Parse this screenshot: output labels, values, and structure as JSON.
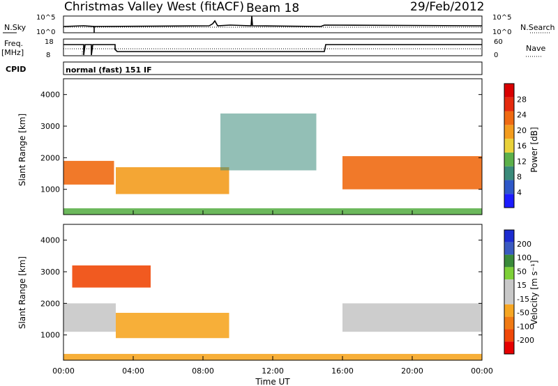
{
  "header": {
    "station": "Christmas Valley West (fitACF)",
    "beam": "Beam 18",
    "date": "29/Feb/2012"
  },
  "status_panels": {
    "nsky_label": "N.Sky",
    "nsearch_label": "N.Search",
    "nsky_ticks": [
      "10^5",
      "10^0"
    ],
    "nsearch_ticks": [
      "10^5",
      "10^0"
    ],
    "freq_label": "Freq.",
    "freq_unit": "[MHz]",
    "freq_ticks": [
      "18",
      "8"
    ],
    "nave_label": "Nave",
    "nave_ticks": [
      "60",
      "0"
    ],
    "cpid_label": "CPID",
    "cpid_text": "normal (fast) 151 IF"
  },
  "colors": {
    "power_scale": [
      "#1c1cff",
      "#2e58c8",
      "#3a8a7a",
      "#5cb04a",
      "#e9d13a",
      "#f39c1e",
      "#ef6a12",
      "#e52a0e",
      "#d90000"
    ],
    "velocity_scale": [
      "#1c2cd0",
      "#3a5ac0",
      "#3a8a3a",
      "#7ed038",
      "#c8c8c8",
      "#c8c8c8",
      "#f6a623",
      "#f07a14",
      "#f04808",
      "#e60000"
    ]
  },
  "chart_data": [
    {
      "type": "heatmap",
      "panel": "power",
      "ylabel": "Slant Range [km]",
      "ylim": [
        200,
        4500
      ],
      "yticks": [
        "1000",
        "2000",
        "3000",
        "4000"
      ],
      "xlim": [
        "00:00",
        "24:00"
      ],
      "colorbar_label": "Power [dB]",
      "colorbar_ticks": [
        "4",
        "8",
        "12",
        "16",
        "20",
        "24",
        "28"
      ],
      "regions": [
        {
          "name": "main-echo-morning",
          "x_start_h": 0.0,
          "x_end_h": 2.9,
          "y_low_km": 1150,
          "y_high_km": 1900,
          "power_db": 24
        },
        {
          "name": "main-echo-day",
          "x_start_h": 3.0,
          "x_end_h": 9.5,
          "y_low_km": 850,
          "y_high_km": 1700,
          "power_db": 20
        },
        {
          "name": "dusk-echo",
          "x_start_h": 16.0,
          "x_end_h": 24.0,
          "y_low_km": 1000,
          "y_high_km": 2050,
          "power_db": 24
        },
        {
          "name": "noon-weak-echo",
          "x_start_h": 9.0,
          "x_end_h": 14.5,
          "y_low_km": 1600,
          "y_high_km": 3400,
          "power_db": 6
        },
        {
          "name": "ground-scatter-floor",
          "x_start_h": 0.0,
          "x_end_h": 24.0,
          "y_low_km": 200,
          "y_high_km": 400,
          "power_db": 10
        }
      ]
    },
    {
      "type": "heatmap",
      "panel": "velocity",
      "ylabel": "Slant Range [km]",
      "ylim": [
        200,
        4500
      ],
      "yticks": [
        "1000",
        "2000",
        "3000",
        "4000"
      ],
      "xlim": [
        "00:00",
        "24:00"
      ],
      "xticks": [
        "00:00",
        "04:00",
        "08:00",
        "12:00",
        "16:00",
        "20:00",
        "00:00"
      ],
      "xlabel": "Time UT",
      "colorbar_label": "Velocity [m s⁻¹]",
      "colorbar_ticks": [
        "200",
        "100",
        "50",
        "15",
        "-15",
        "-50",
        "-100",
        "-200"
      ],
      "regions": [
        {
          "name": "ground-scatter-morning",
          "x_start_h": 0.0,
          "x_end_h": 3.0,
          "y_low_km": 1100,
          "y_high_km": 2000,
          "velocity": 0
        },
        {
          "name": "negative-flow-day",
          "x_start_h": 3.0,
          "x_end_h": 9.5,
          "y_low_km": 900,
          "y_high_km": 1700,
          "velocity": -60
        },
        {
          "name": "ground-scatter-dusk",
          "x_start_h": 16.0,
          "x_end_h": 24.0,
          "y_low_km": 1100,
          "y_high_km": 2000,
          "velocity": 0
        },
        {
          "name": "morning-red-patches",
          "x_start_h": 0.5,
          "x_end_h": 5.0,
          "y_low_km": 2500,
          "y_high_km": 3200,
          "velocity": -200
        },
        {
          "name": "near-range-orange",
          "x_start_h": 0.0,
          "x_end_h": 24.0,
          "y_low_km": 200,
          "y_high_km": 400,
          "velocity": -60
        }
      ]
    }
  ]
}
